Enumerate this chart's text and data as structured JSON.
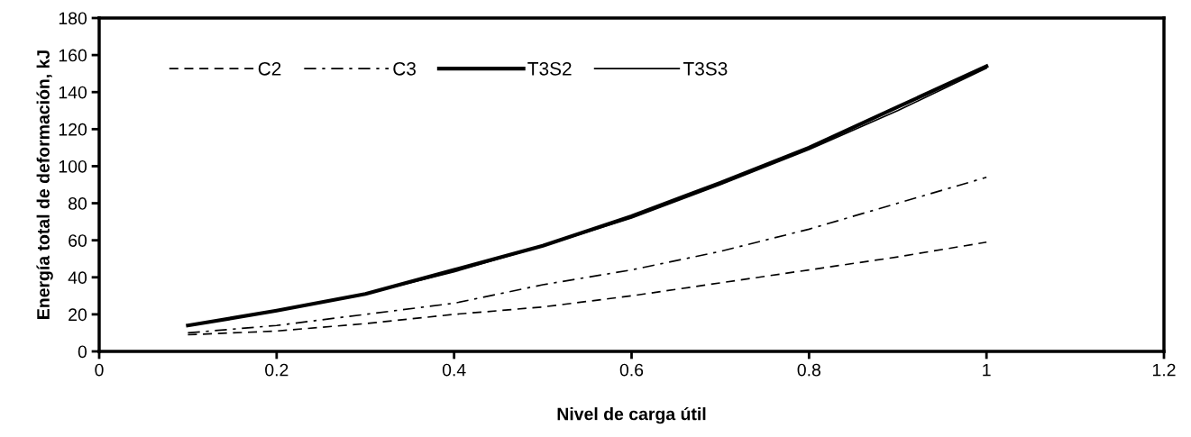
{
  "chart_data": {
    "type": "line",
    "xlabel": "Nivel de carga útil",
    "ylabel": "Energía total de deformación, kJ",
    "x": [
      0.1,
      0.2,
      0.3,
      0.4,
      0.5,
      0.6,
      0.7,
      0.8,
      0.9,
      1.0
    ],
    "series": [
      {
        "name": "C2",
        "color": "#000000",
        "line_style": "dashed",
        "values": [
          9,
          11,
          15,
          20,
          24,
          30,
          37,
          44,
          51,
          59
        ]
      },
      {
        "name": "C3",
        "color": "#000000",
        "line_style": "dashdot",
        "values": [
          10,
          14,
          20,
          26,
          36,
          44,
          54,
          66,
          80,
          94
        ]
      },
      {
        "name": "T3S2",
        "color": "#000000",
        "line_style": "solid",
        "values": [
          14,
          22,
          31,
          44,
          57,
          73,
          91,
          110,
          132,
          154
        ]
      },
      {
        "name": "T3S3",
        "color": "#000000",
        "line_style": "solid",
        "values": [
          14,
          22,
          31,
          43,
          57,
          72,
          90,
          109,
          130,
          153
        ]
      }
    ],
    "xlim": [
      0,
      1.2
    ],
    "xticks": [
      0,
      {
        "value": 0.2,
        "label": "0.2"
      },
      {
        "value": 0.4,
        "label": "0.4"
      },
      {
        "value": 0.6,
        "label": "0.6"
      },
      {
        "value": 0.8,
        "label": "0.8"
      },
      1,
      {
        "value": 1.2,
        "label": "1.2"
      }
    ],
    "ylim": [
      0,
      180
    ],
    "yticks": [
      0,
      20,
      40,
      60,
      80,
      100,
      120,
      140,
      160,
      180
    ],
    "grid": false,
    "legend": "top left",
    "marker": "none"
  }
}
